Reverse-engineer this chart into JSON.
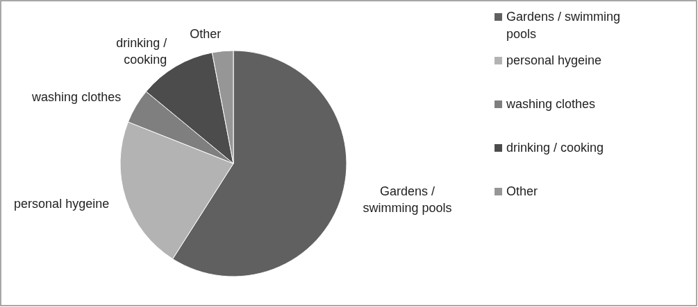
{
  "chart_data": {
    "type": "pie",
    "categories": [
      "Gardens / swimming pools",
      "personal hygeine",
      "washing clothes",
      "drinking / cooking",
      "Other"
    ],
    "values": [
      59,
      22,
      5,
      11,
      3
    ],
    "colors": [
      "#606060",
      "#b3b3b3",
      "#7f7f7f",
      "#4c4c4c",
      "#969696"
    ],
    "legend": "right"
  }
}
